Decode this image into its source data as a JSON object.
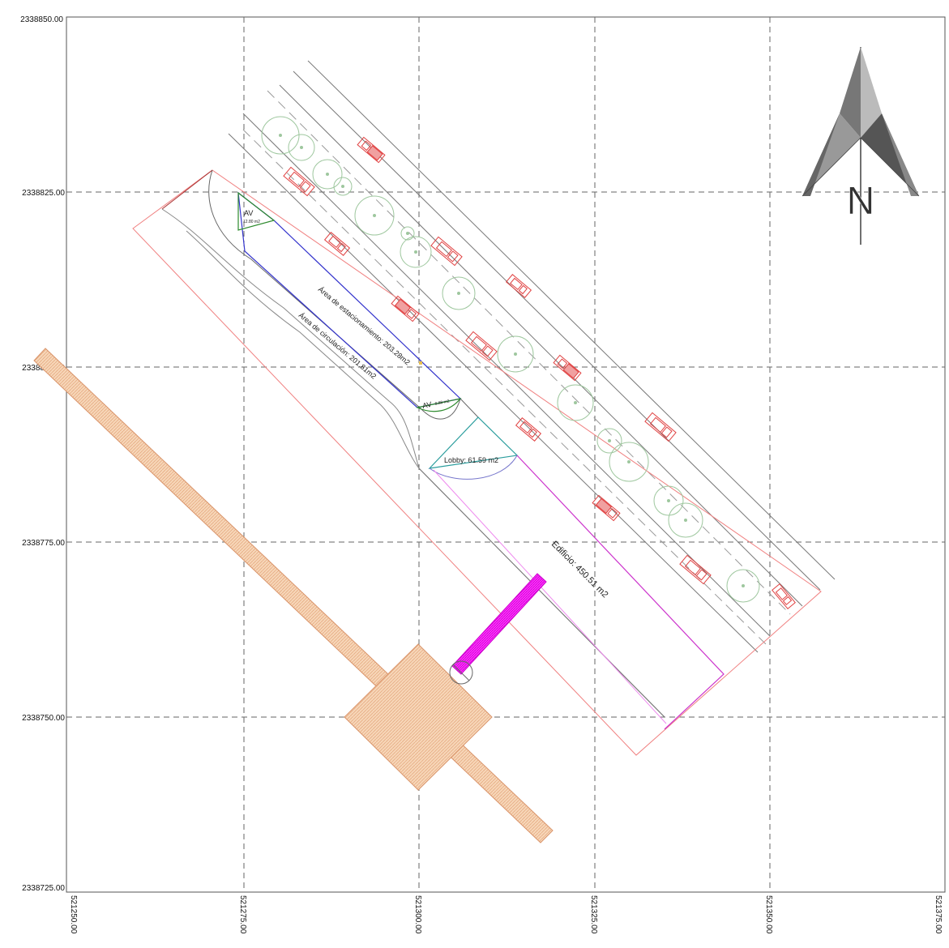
{
  "grid": {
    "y_labels": [
      "2338850.00",
      "2338825.00",
      "2338800.00",
      "2338775.00",
      "2338750.00",
      "2338725.00"
    ],
    "x_labels": [
      "521250.00",
      "521275.00",
      "521300.00",
      "521325.00",
      "521350.00",
      "521375.00"
    ]
  },
  "north_arrow": {
    "letter": "N"
  },
  "labels": {
    "estacionamiento": "Área de estacionamiento: 203.28m2",
    "circulacion": "Área de circulación: 201.81m2",
    "lobby": "Lobby: 61.59 m2",
    "edificio": "Edificio: 450.51 m2",
    "av_top": "AV",
    "av_top_area": "12.80 m2",
    "av_bottom": "AV",
    "av_bottom_area": "8.88 m2"
  },
  "colors": {
    "grid": "#555555",
    "tree": "#9ec79e",
    "car": "#e04040",
    "parking_outline": "#3333cc",
    "building": "#cc33cc",
    "property": "#f08080",
    "hatch": "#f5c9a0",
    "magenta": "#ee00ee"
  }
}
